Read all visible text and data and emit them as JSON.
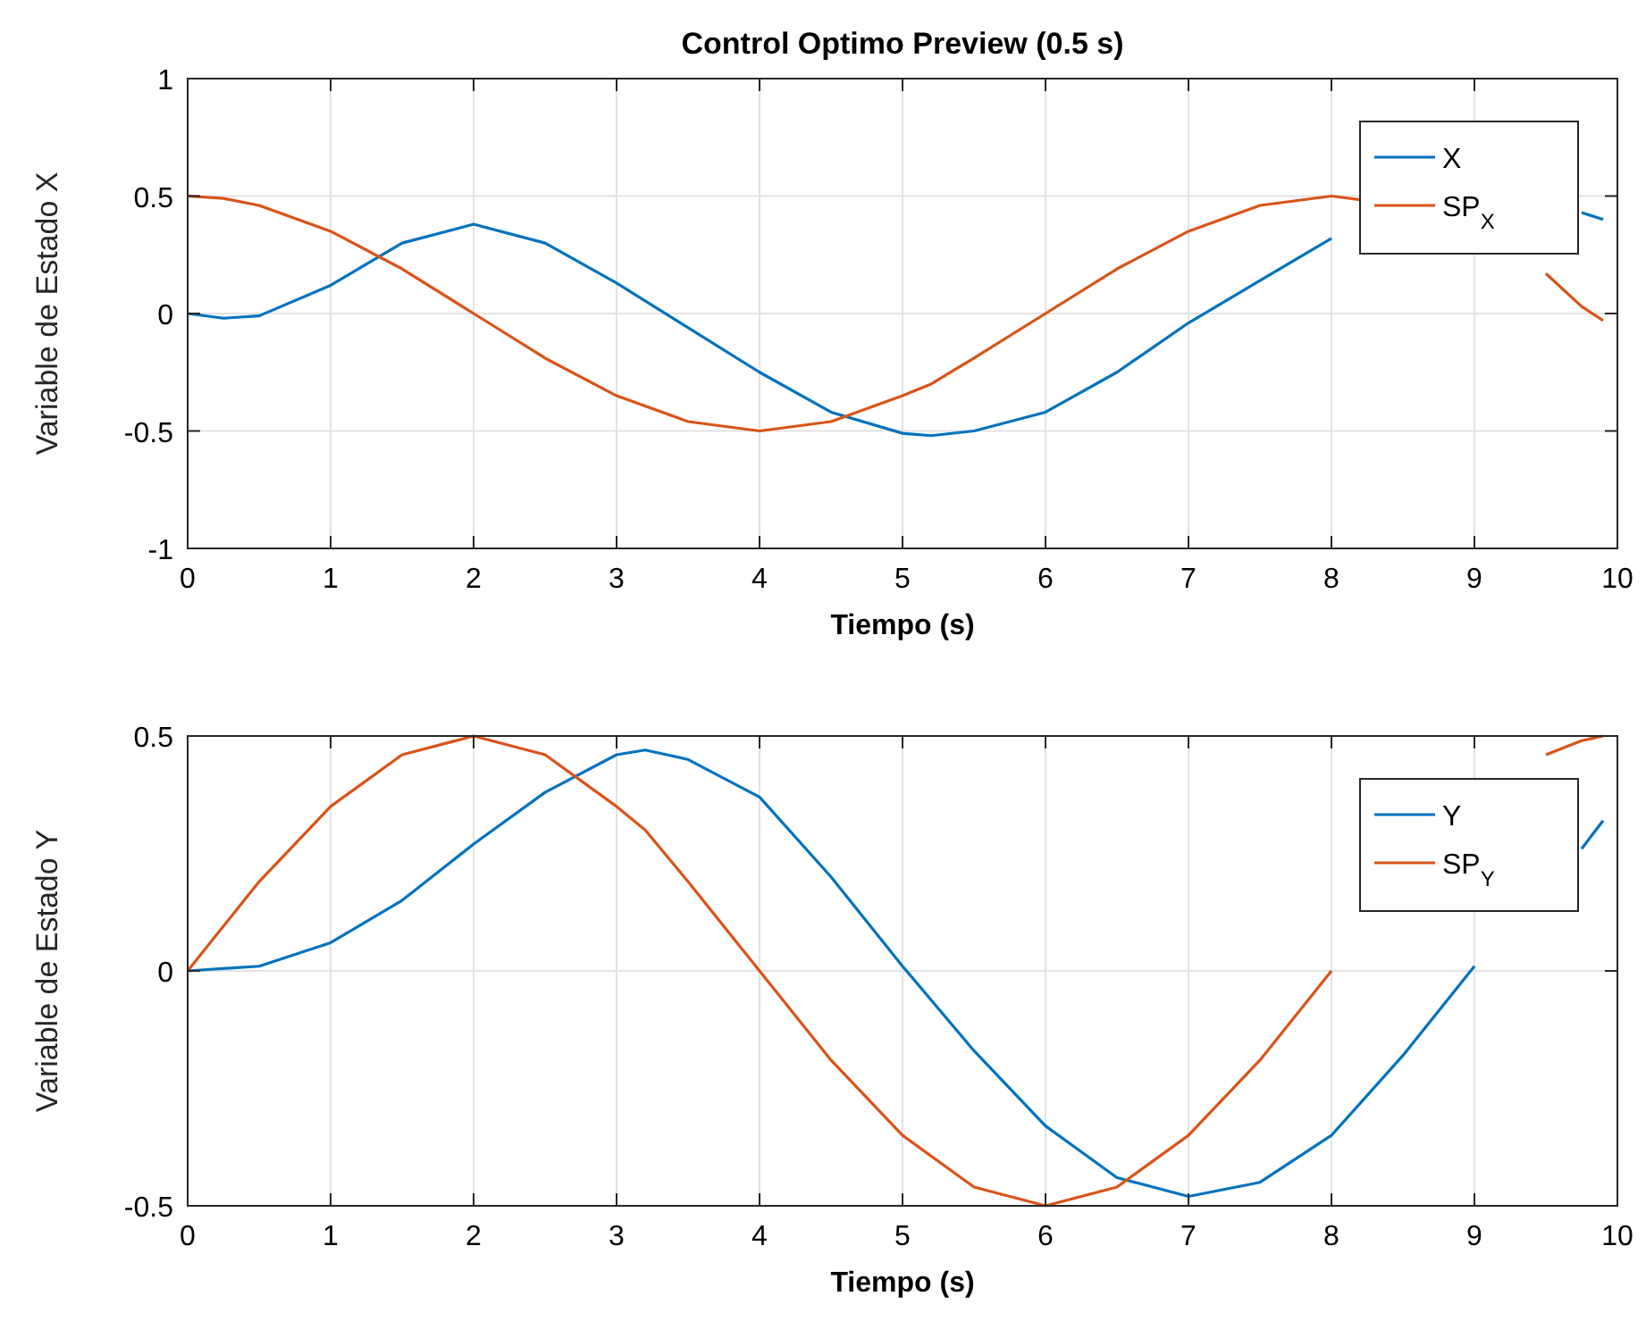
{
  "chart_data": [
    {
      "type": "line",
      "title": "Control Optimo Preview (0.5 s)",
      "xlabel": "Tiempo (s)",
      "ylabel": "Variable de Estado X",
      "xlim": [
        0,
        10
      ],
      "ylim": [
        -1,
        1
      ],
      "xticks": [
        0,
        1,
        2,
        3,
        4,
        5,
        6,
        7,
        8,
        9,
        10
      ],
      "yticks": [
        -1,
        -0.5,
        0,
        0.5,
        1
      ],
      "grid": true,
      "legend": "top right",
      "x": [
        0,
        0.25,
        0.5,
        1,
        1.5,
        2,
        2.5,
        3,
        3.5,
        4,
        4.5,
        5,
        5.2,
        5.5,
        6,
        6.5,
        7,
        7.5,
        8,
        8.5,
        9,
        9.5,
        9.75,
        9.9
      ],
      "series": [
        {
          "name": "X",
          "color": "#0072bd",
          "values": [
            0,
            -0.02,
            -0.01,
            0.12,
            0.3,
            0.38,
            0.3,
            0.13,
            -0.06,
            -0.25,
            -0.42,
            -0.51,
            -0.52,
            -0.5,
            -0.42,
            -0.25,
            -0.04,
            0.14,
            0.32,
            null,
            null,
            null,
            0.43,
            0.4
          ]
        },
        {
          "name": "SP$_{X}$",
          "color": "#d95319",
          "values": [
            0.5,
            0.49,
            0.46,
            0.35,
            0.19,
            0,
            -0.19,
            -0.35,
            -0.46,
            -0.5,
            -0.46,
            -0.35,
            -0.3,
            -0.19,
            0,
            0.19,
            0.35,
            0.46,
            0.5,
            0.46,
            null,
            0.17,
            0.03,
            -0.03
          ]
        }
      ]
    },
    {
      "type": "line",
      "xlabel": "Tiempo (s)",
      "ylabel": "Variable de Estado Y",
      "xlim": [
        0,
        10
      ],
      "ylim": [
        -0.5,
        0.5
      ],
      "xticks": [
        0,
        1,
        2,
        3,
        4,
        5,
        6,
        7,
        8,
        9,
        10
      ],
      "yticks": [
        -0.5,
        0,
        0.5
      ],
      "grid": true,
      "legend": "top right",
      "x": [
        0,
        0.5,
        1,
        1.5,
        2,
        2.5,
        3,
        3.2,
        3.5,
        4,
        4.5,
        5,
        5.5,
        6,
        6.5,
        7,
        7.5,
        8,
        8.5,
        9,
        9.5,
        9.75,
        9.9
      ],
      "series": [
        {
          "name": "Y",
          "color": "#0072bd",
          "values": [
            0,
            0.01,
            0.06,
            0.15,
            0.27,
            0.38,
            0.46,
            0.47,
            0.45,
            0.37,
            0.2,
            0.01,
            -0.17,
            -0.33,
            -0.44,
            -0.48,
            -0.45,
            -0.35,
            -0.18,
            0.01,
            null,
            0.26,
            0.32
          ]
        },
        {
          "name": "SP$_{Y}$",
          "color": "#d95319",
          "values": [
            0,
            0.19,
            0.35,
            0.46,
            0.5,
            0.46,
            0.35,
            0.3,
            0.19,
            0,
            -0.19,
            -0.35,
            -0.46,
            -0.5,
            -0.46,
            -0.35,
            -0.19,
            0,
            null,
            null,
            0.46,
            0.49,
            0.5
          ]
        }
      ]
    }
  ]
}
